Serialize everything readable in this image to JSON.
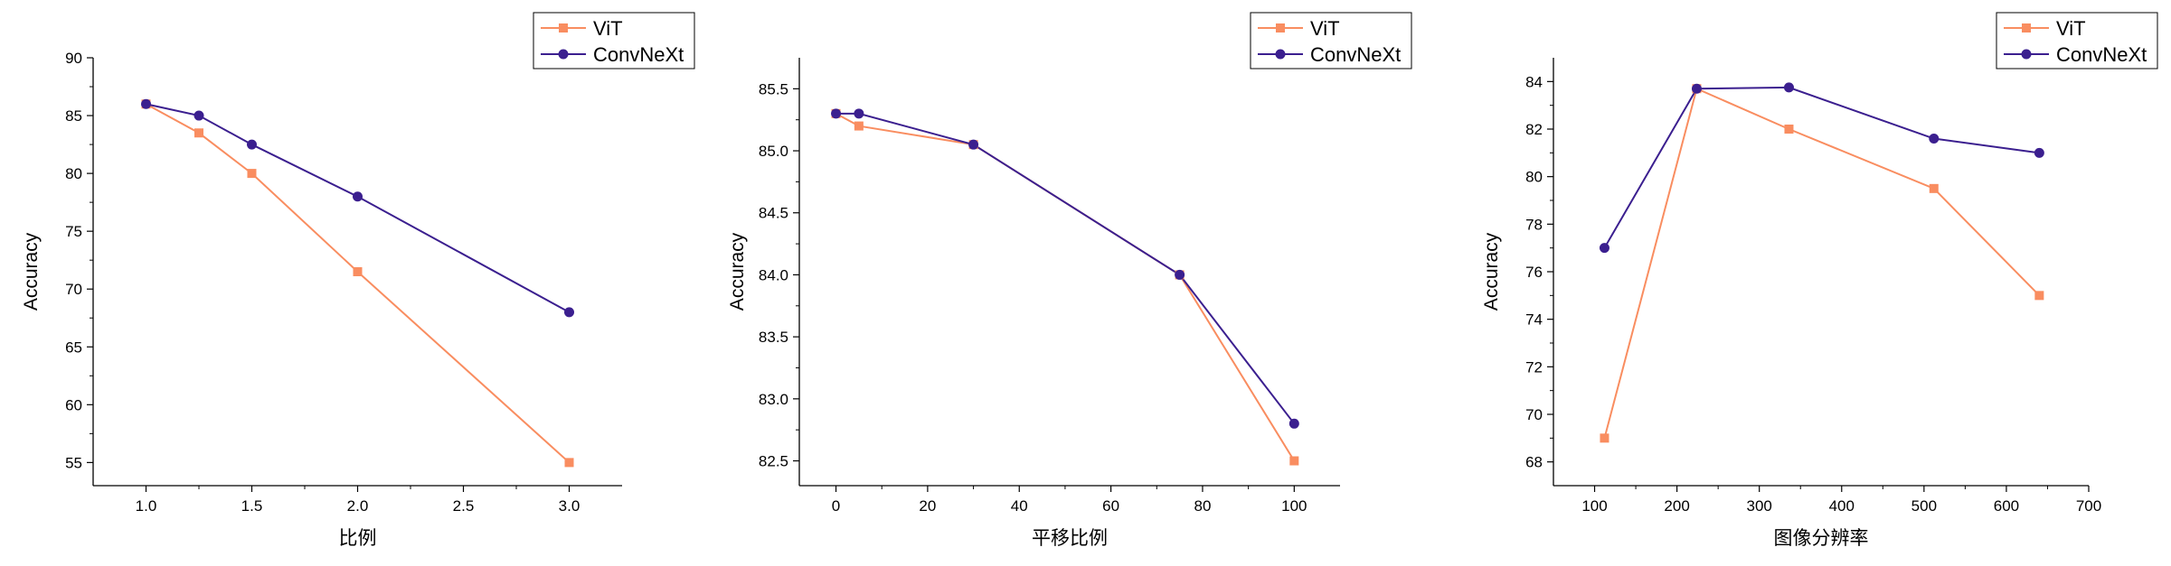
{
  "colors": {
    "vit": "#f98d60",
    "convnext": "#3b1f8f",
    "axis": "#000000",
    "legend_border": "#000000",
    "background": "#ffffff"
  },
  "chart_data": [
    {
      "type": "line",
      "xlabel": "比例",
      "ylabel": "Accuracy",
      "xlim": [
        0.75,
        3.25
      ],
      "ylim": [
        53,
        90
      ],
      "xticks": [
        1.0,
        1.5,
        2.0,
        2.5,
        3.0
      ],
      "xtick_labels": [
        "1.0",
        "1.5",
        "2.0",
        "2.5",
        "3.0"
      ],
      "yticks": [
        55,
        60,
        65,
        70,
        75,
        80,
        85,
        90
      ],
      "ytick_labels": [
        "55",
        "60",
        "65",
        "70",
        "75",
        "80",
        "85",
        "90"
      ],
      "legend_position": "top-right",
      "series": [
        {
          "name": "ViT",
          "marker": "square",
          "x": [
            1.0,
            1.25,
            1.5,
            2.0,
            3.0
          ],
          "y": [
            86.0,
            83.5,
            80.0,
            71.5,
            55.0
          ]
        },
        {
          "name": "ConvNeXt",
          "marker": "circle",
          "x": [
            1.0,
            1.25,
            1.5,
            2.0,
            3.0
          ],
          "y": [
            86.0,
            85.0,
            82.5,
            78.0,
            68.0
          ]
        }
      ]
    },
    {
      "type": "line",
      "xlabel": "平移比例",
      "ylabel": "Accuracy",
      "xlim": [
        -8,
        110
      ],
      "ylim": [
        82.3,
        85.75
      ],
      "xticks": [
        0,
        20,
        40,
        60,
        80,
        100
      ],
      "xtick_labels": [
        "0",
        "20",
        "40",
        "60",
        "80",
        "100"
      ],
      "yticks": [
        82.5,
        83.0,
        83.5,
        84.0,
        84.5,
        85.0,
        85.5
      ],
      "ytick_labels": [
        "82.5",
        "83.0",
        "83.5",
        "84.0",
        "84.5",
        "85.0",
        "85.5"
      ],
      "legend_position": "top-right",
      "series": [
        {
          "name": "ViT",
          "marker": "square",
          "x": [
            0,
            5,
            30,
            75,
            100
          ],
          "y": [
            85.3,
            85.2,
            85.05,
            84.0,
            82.5
          ]
        },
        {
          "name": "ConvNeXt",
          "marker": "circle",
          "x": [
            0,
            5,
            30,
            75,
            100
          ],
          "y": [
            85.3,
            85.3,
            85.05,
            84.0,
            82.8
          ]
        }
      ]
    },
    {
      "type": "line",
      "xlabel": "图像分辨率",
      "ylabel": "Accuracy",
      "xlim": [
        50,
        700
      ],
      "ylim": [
        67,
        85
      ],
      "xticks": [
        100,
        200,
        300,
        400,
        500,
        600,
        700
      ],
      "xtick_labels": [
        "100",
        "200",
        "300",
        "400",
        "500",
        "600",
        "700"
      ],
      "yticks": [
        68,
        70,
        72,
        74,
        76,
        78,
        80,
        82,
        84
      ],
      "ytick_labels": [
        "68",
        "70",
        "72",
        "74",
        "76",
        "78",
        "80",
        "82",
        "84"
      ],
      "legend_position": "top-right",
      "series": [
        {
          "name": "ViT",
          "marker": "square",
          "x": [
            112,
            224,
            336,
            512,
            640
          ],
          "y": [
            69.0,
            83.7,
            82.0,
            79.5,
            75.0
          ]
        },
        {
          "name": "ConvNeXt",
          "marker": "circle",
          "x": [
            112,
            224,
            336,
            512,
            640
          ],
          "y": [
            77.0,
            83.7,
            83.75,
            81.6,
            81.0
          ]
        }
      ]
    }
  ]
}
